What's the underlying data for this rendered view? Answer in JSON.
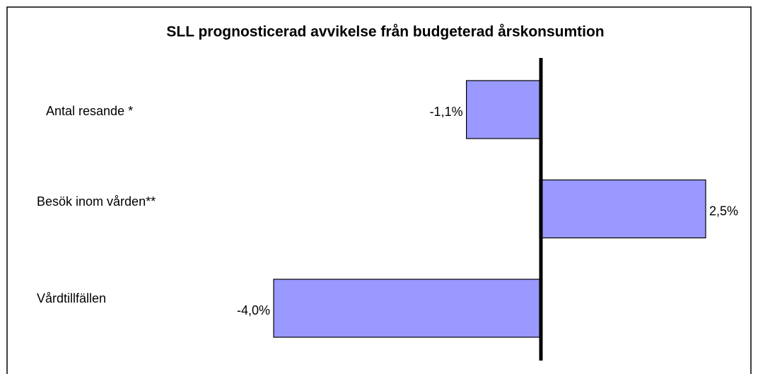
{
  "chart_data": {
    "type": "barh",
    "title": "SLL prognosticerad avvikelse från budgeterad årskonsumtion",
    "categories": [
      "Antal resande *",
      "Besök inom vården**",
      "Vårdtillfällen"
    ],
    "values": [
      -1.1,
      2.5,
      -4.0
    ],
    "value_labels": [
      "-1,1%",
      "2,5%",
      "-4,0%"
    ],
    "color": "#9999ff"
  }
}
